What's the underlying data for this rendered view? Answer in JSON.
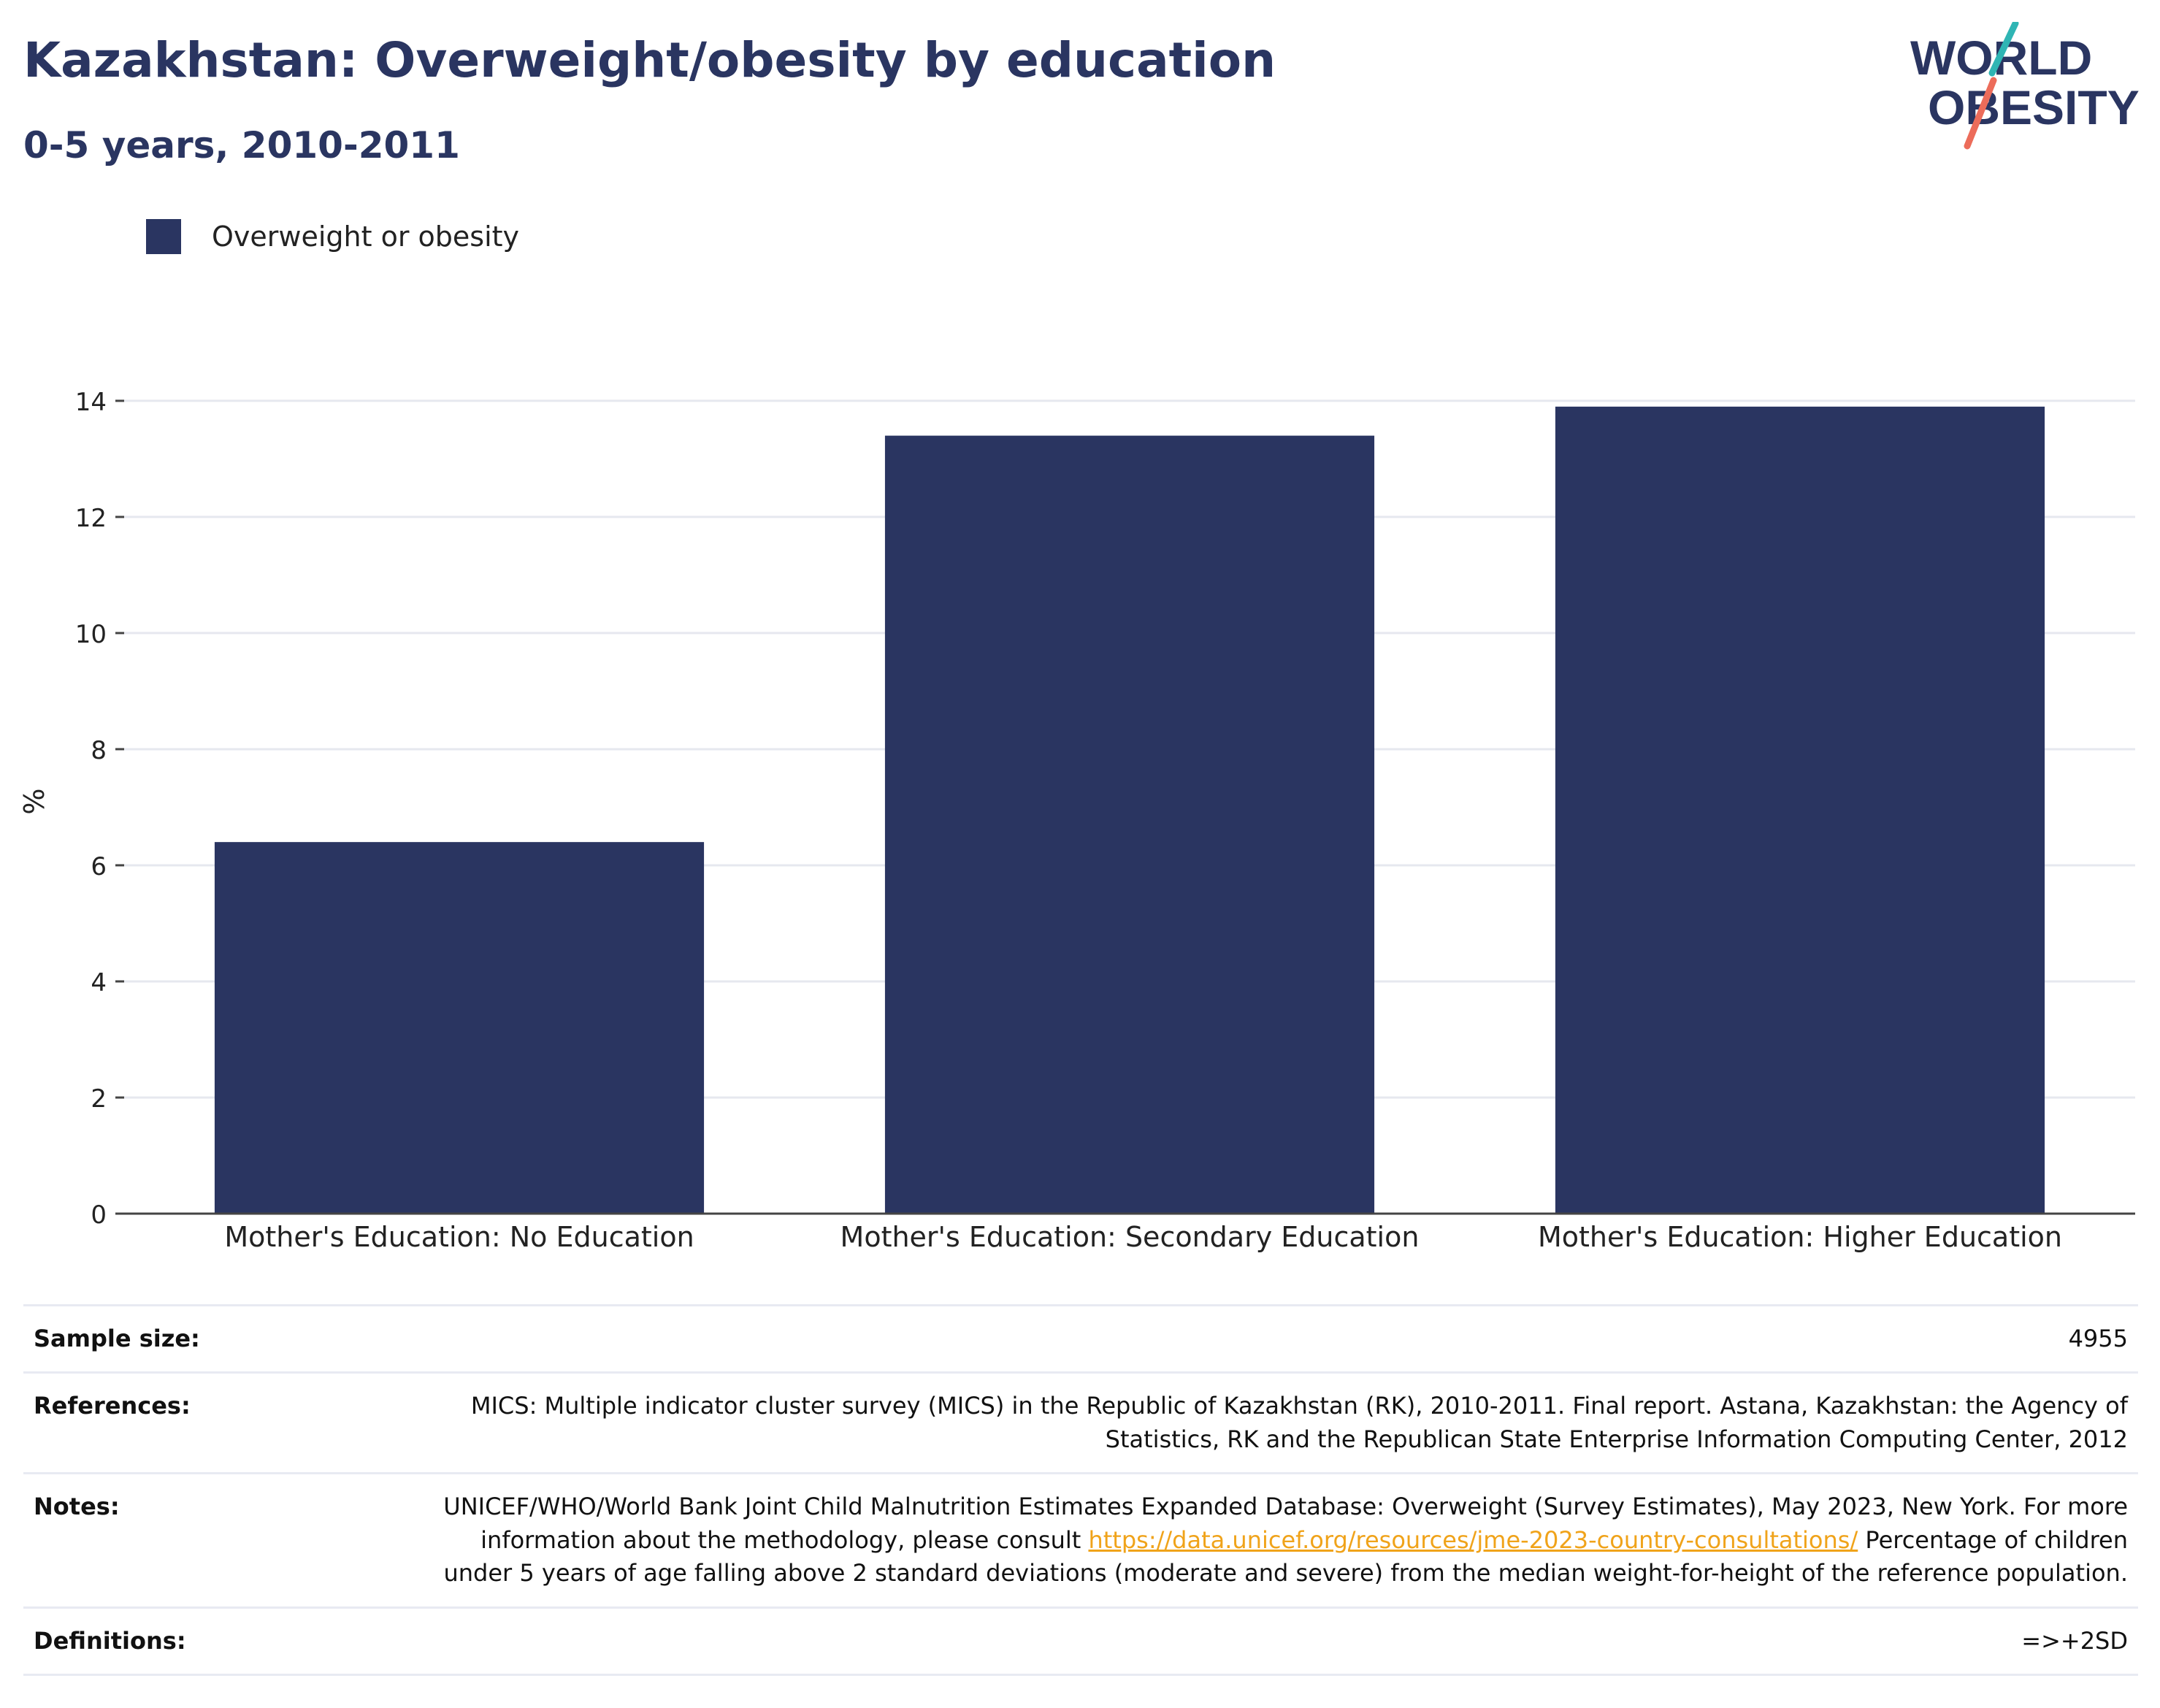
{
  "header": {
    "title": "Kazakhstan: Overweight/obesity by education",
    "subtitle": "0-5 years, 2010-2011"
  },
  "logo": {
    "line1": "WORLD",
    "line2": "OBESITY",
    "colors": {
      "navy": "#2a3561",
      "teal": "#2fb5b4",
      "coral": "#ec6c5a"
    }
  },
  "legend": {
    "label": "Overweight or obesity",
    "color": "#2a3561"
  },
  "chart_data": {
    "type": "bar",
    "categories": [
      "Mother's Education: No Education",
      "Mother's Education: Secondary Education",
      "Mother's Education: Higher Education"
    ],
    "series": [
      {
        "name": "Overweight or obesity",
        "values": [
          6.4,
          13.4,
          13.9
        ],
        "color": "#2a3561"
      }
    ],
    "ylabel": "%",
    "xlabel": "",
    "ylim": [
      0,
      14.2
    ],
    "yticks": [
      "0",
      "2",
      "4",
      "6",
      "8",
      "10",
      "12",
      "14"
    ],
    "grid": true,
    "legend_position": "top-left"
  },
  "info": {
    "sample_size_label": "Sample size:",
    "sample_size_value": "4955",
    "references_label": "References:",
    "references_value": "MICS: Multiple indicator cluster survey (MICS) in the Republic of Kazakhstan (RK), 2010-2011. Final report. Astana, Kazakhstan: the Agency of Statistics, RK and the Republican State Enterprise Information Computing Center, 2012",
    "notes_label": "Notes:",
    "notes_text_1": "UNICEF/WHO/World Bank Joint Child Malnutrition Estimates Expanded Database: Overweight (Survey Estimates), May 2023, New York. For more information about the methodology, please consult ",
    "notes_link": "https://data.unicef.org/resources/jme-2023-country-consultations/",
    "notes_text_2": " Percentage of children under 5 years of age falling above 2 standard deviations (moderate and severe) from the median weight-for-height of the reference population.",
    "definitions_label": "Definitions:",
    "definitions_value": "=>+2SD"
  }
}
